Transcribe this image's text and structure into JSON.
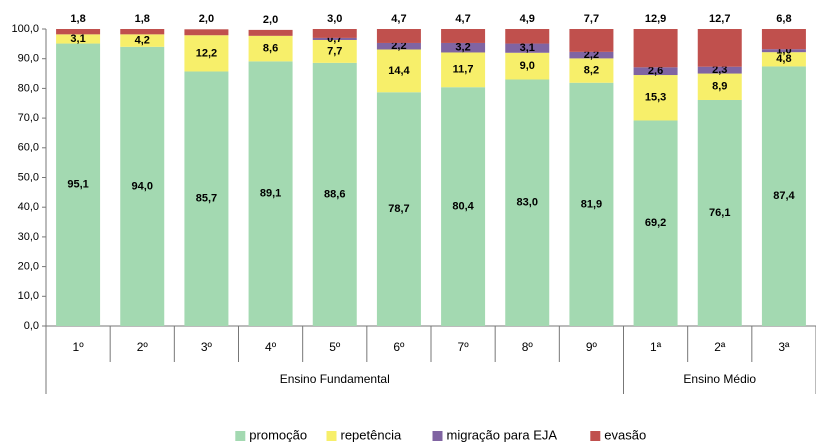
{
  "chart_data": {
    "type": "stacked_bar",
    "categories": [
      "1º",
      "2º",
      "3º",
      "4º",
      "5º",
      "6º",
      "7º",
      "8º",
      "9º",
      "1ª",
      "2ª",
      "3ª"
    ],
    "groups": [
      {
        "name": "Ensino Fundamental",
        "categories": [
          "1º",
          "2º",
          "3º",
          "4º",
          "5º",
          "6º",
          "7º",
          "8º",
          "9º"
        ]
      },
      {
        "name": "Ensino Médio",
        "categories": [
          "1ª",
          "2ª",
          "3ª"
        ]
      }
    ],
    "series": [
      {
        "name": "promoção",
        "color": "#a3d9b1",
        "values": [
          95.1,
          94.0,
          85.7,
          89.1,
          88.6,
          78.7,
          80.4,
          83.0,
          81.9,
          69.2,
          76.1,
          87.4
        ],
        "value_labels": [
          "95,1",
          "94,0",
          "85,7",
          "89,1",
          "88,6",
          "78,7",
          "80,4",
          "83,0",
          "81,9",
          "69,2",
          "76,1",
          "87,4"
        ]
      },
      {
        "name": "repetência",
        "color": "#f7ef6a",
        "values": [
          3.1,
          4.2,
          12.2,
          8.6,
          7.7,
          14.4,
          11.7,
          9.0,
          8.2,
          15.3,
          8.9,
          4.8
        ],
        "value_labels": [
          "3,1",
          "4,2",
          "12,2",
          "8,6",
          "7,7",
          "14,4",
          "11,7",
          "9,0",
          "8,2",
          "15,3",
          "8,9",
          "4,8"
        ]
      },
      {
        "name": "migração para EJA",
        "color": "#8064a2",
        "values": [
          null,
          null,
          null,
          null,
          0.7,
          2.2,
          3.2,
          3.1,
          2.2,
          2.6,
          2.3,
          1.0
        ],
        "value_labels": [
          null,
          null,
          null,
          null,
          "0,7",
          "2,2",
          "3,2",
          "3,1",
          "2,2",
          "2,6",
          "2,3",
          "1,0"
        ]
      },
      {
        "name": "evasão",
        "color": "#c0504d",
        "values": [
          1.8,
          1.8,
          2.0,
          2.0,
          3.0,
          4.7,
          4.7,
          4.9,
          7.7,
          12.9,
          12.7,
          6.8
        ],
        "value_labels": [
          "1,8",
          "1,8",
          "2,0",
          "2,0",
          "3,0",
          "4,7",
          "4,7",
          "4,9",
          "7,7",
          "12,9",
          "12,7",
          "6,8"
        ]
      }
    ],
    "ylim": [
      0,
      100
    ],
    "yticks": [
      {
        "value": 0,
        "label": "0,0"
      },
      {
        "value": 10,
        "label": "10,0"
      },
      {
        "value": 20,
        "label": "20,0"
      },
      {
        "value": 30,
        "label": "30,0"
      },
      {
        "value": 40,
        "label": "40,0"
      },
      {
        "value": 50,
        "label": "50,0"
      },
      {
        "value": 60,
        "label": "60,0"
      },
      {
        "value": 70,
        "label": "70,0"
      },
      {
        "value": 80,
        "label": "80,0"
      },
      {
        "value": 90,
        "label": "90,0"
      },
      {
        "value": 100,
        "label": "100,0"
      }
    ],
    "grid": false,
    "legend": "bottom"
  }
}
